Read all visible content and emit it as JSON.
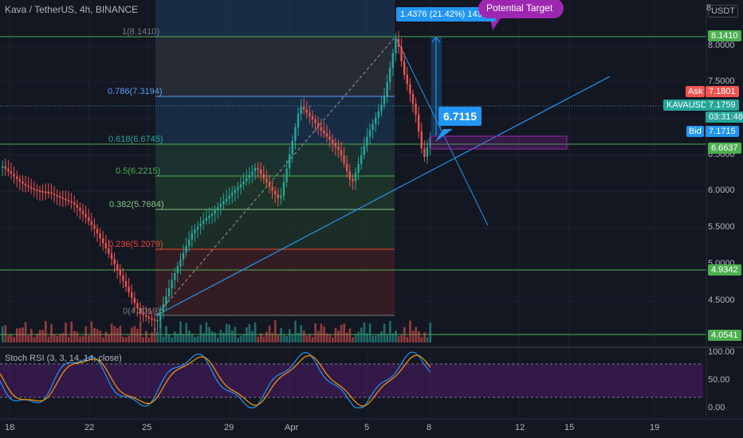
{
  "title": "Kava / TetherUS, 4h, BINANCE",
  "currency": "USDT",
  "top_right_partial": "8",
  "price_axis": [
    "8.0000",
    "7.5000",
    "7.0000",
    "6.5000",
    "6.0000",
    "5.5000",
    "5.0000",
    "4.5000"
  ],
  "level_tags": [
    {
      "text": "8.1410",
      "color": "#4caf50"
    },
    {
      "text": "6.6637",
      "color": "#4caf50"
    },
    {
      "text": "4.9342",
      "color": "#4caf50"
    },
    {
      "text": "4.0541",
      "color": "#4caf50"
    }
  ],
  "ask": {
    "label": "Ask",
    "value": "7.1801",
    "color": "#ef5350"
  },
  "bid": {
    "label": "Bid",
    "value": "7.1715",
    "color": "#2196f3"
  },
  "ticker": {
    "symbol": "KAVAUSDT",
    "price": "7.1759",
    "countdown": "03:31:48",
    "color": "#26a69a"
  },
  "fib_levels": [
    {
      "label": "1(8.1410)",
      "color": "#787b86"
    },
    {
      "label": "0.786(7.3194)",
      "color": "#5b9cf6"
    },
    {
      "label": "0.618(6.6745)",
      "color": "#26a69a"
    },
    {
      "label": "0.5(6.2215)",
      "color": "#4caf50"
    },
    {
      "label": "0.382(5.7684)",
      "color": "#81c784"
    },
    {
      "label": "0.236(5.2079)",
      "color": "#f44336"
    },
    {
      "label": "0(4.3019)",
      "color": "#787b86"
    }
  ],
  "measure_label": "1.4376 (21.42%) 14376",
  "potential_target": "Potential Target",
  "price_callout": "6.7115",
  "stoch": {
    "label": "Stoch RSI (3, 3, 14, 14, close)",
    "axis": [
      "100.00",
      "50.00",
      "0.00"
    ]
  },
  "date_axis": [
    "18",
    "22",
    "25",
    "29",
    "Apr",
    "5",
    "8",
    "12",
    "15",
    "19"
  ],
  "colors": {
    "background": "#131722",
    "bull": "#26a69a",
    "bear": "#ef5350",
    "accent": "#2196f3",
    "purple": "#9c27b0"
  },
  "icons": [
    "speech-bubble-icon",
    "arrow-up-icon"
  ]
}
